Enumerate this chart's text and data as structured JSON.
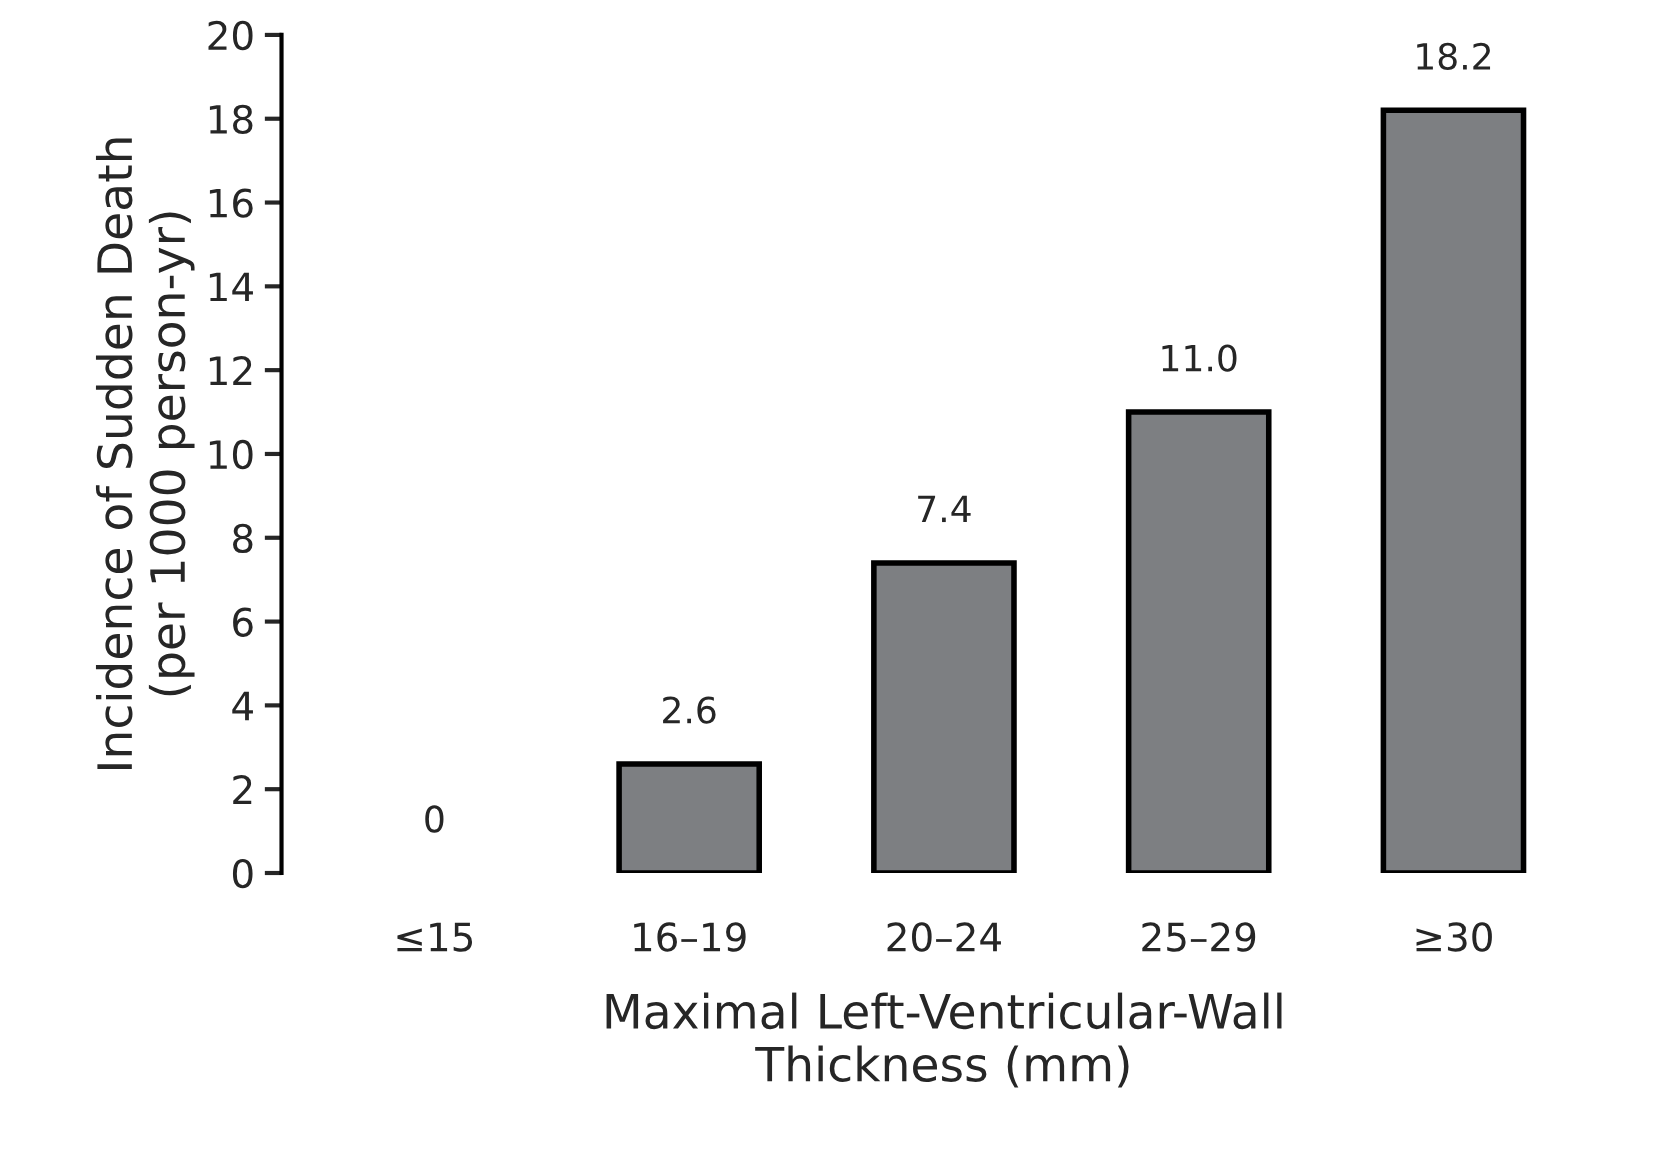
{
  "chart_data": {
    "type": "bar",
    "xlabel": "Maximal Left-Ventricular-Wall\nThickness (mm)",
    "ylabel": "Incidence of Sudden Death\n(per 1000 person-yr)",
    "categories": [
      "≤15",
      "16–19",
      "20–24",
      "25–29",
      "≥30"
    ],
    "values": [
      0,
      2.6,
      7.4,
      11.0,
      18.2
    ],
    "value_labels": [
      "0",
      "2.6",
      "7.4",
      "11.0",
      "18.2"
    ],
    "color": "#7d7f82",
    "ylim": [
      0,
      20
    ],
    "yticks": [
      0,
      2,
      4,
      6,
      8,
      10,
      12,
      14,
      16,
      18,
      20
    ],
    "grid": false,
    "legend": false
  }
}
